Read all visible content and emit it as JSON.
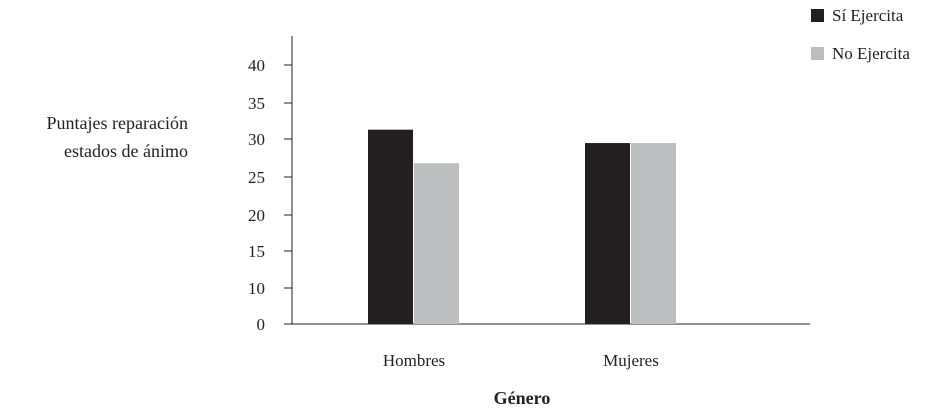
{
  "chart_data": {
    "type": "bar",
    "xlabel": "Género",
    "ylabel_lines": [
      "Puntajes reparación",
      "estados de ánimo"
    ],
    "categories": [
      "Hombres",
      "Mujeres"
    ],
    "series": [
      {
        "name": "Sí Ejercita",
        "color": "#231f20",
        "values": [
          31.3,
          29.5
        ]
      },
      {
        "name": "No Ejercita",
        "color": "#bcbec0",
        "values": [
          26.8,
          29.5
        ]
      }
    ],
    "y_ticks": [
      "0",
      "10",
      "15",
      "20",
      "25",
      "30",
      "35",
      "40"
    ],
    "legend_position": "top-right",
    "grid": false
  }
}
